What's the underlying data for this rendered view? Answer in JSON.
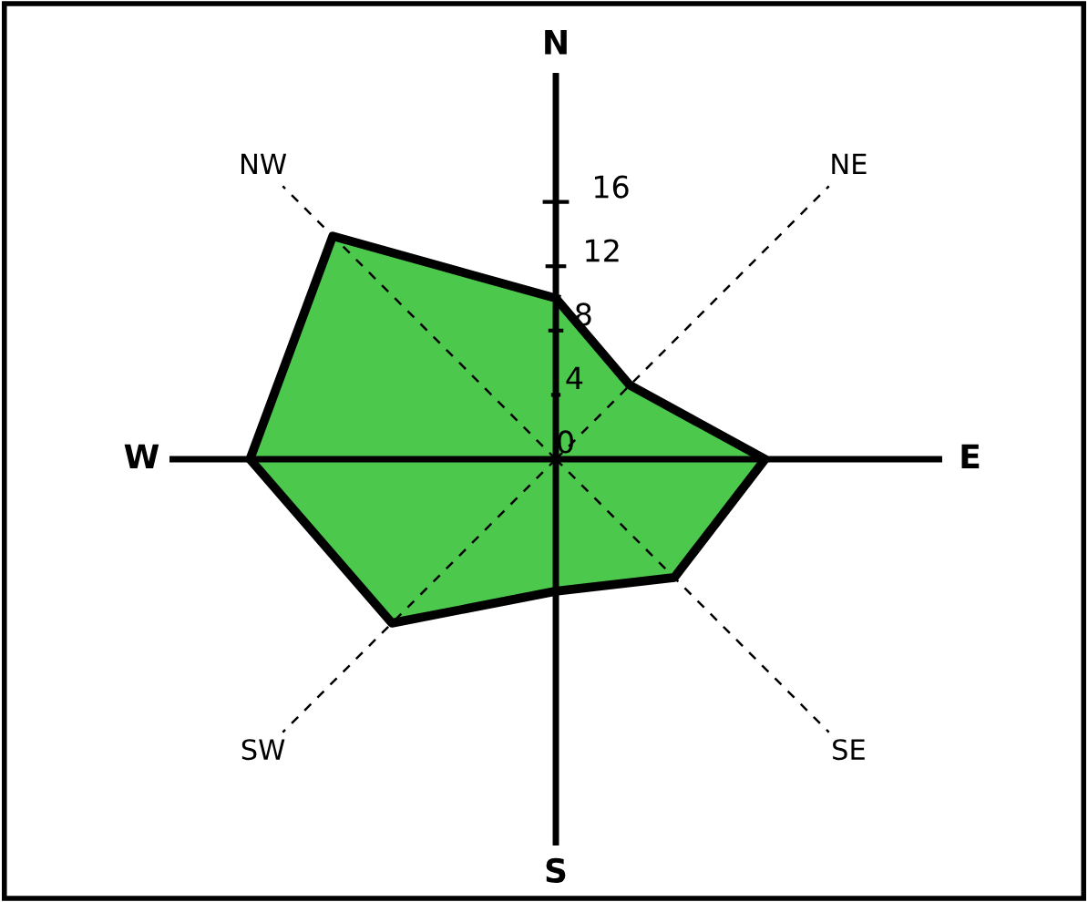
{
  "chart_data": {
    "type": "radar",
    "categories": [
      "N",
      "NE",
      "E",
      "SE",
      "S",
      "SW",
      "W",
      "NW"
    ],
    "series": [
      {
        "color": "#4cc84c",
        "values": [
          10,
          6.5,
          13,
          10.4,
          8.2,
          14.4,
          19,
          19.6
        ]
      }
    ],
    "ylim": [
      0,
      24
    ],
    "yticks": [
      0,
      4,
      8,
      12,
      16
    ],
    "grid": "x"
  }
}
